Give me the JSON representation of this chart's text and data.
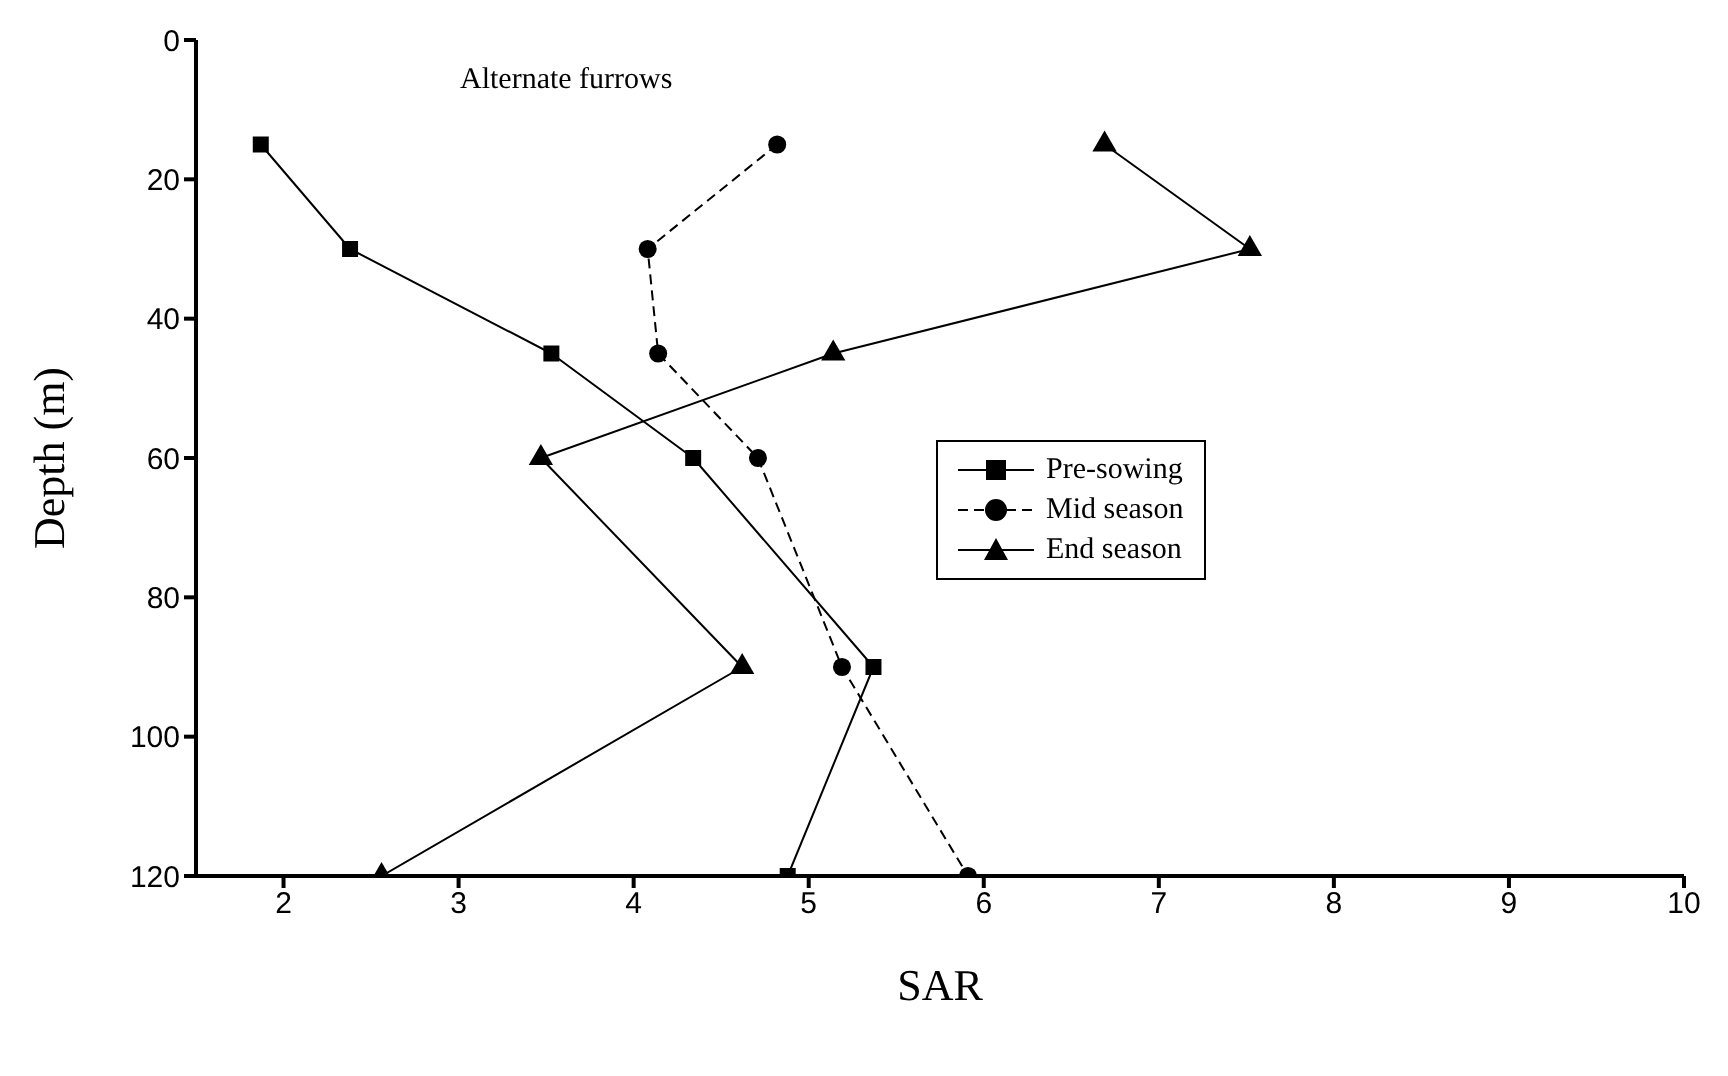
{
  "chart_data": {
    "type": "line",
    "title": "Alternate furrows",
    "xlabel": "SAR",
    "ylabel": "Depth (m)",
    "xlim": [
      1.5,
      10
    ],
    "xticks": [
      2,
      3,
      4,
      5,
      6,
      7,
      8,
      9,
      10
    ],
    "ylim": [
      120,
      0
    ],
    "yticks": [
      0,
      20,
      40,
      60,
      80,
      100,
      120
    ],
    "grid": false,
    "legend": "right",
    "series": [
      {
        "name": "Pre-sowing",
        "color": "#000000",
        "marker": "square",
        "line_style": "solid",
        "x": [
          1.87,
          2.38,
          3.53,
          4.34,
          5.37,
          4.88
        ],
        "values": [
          15,
          30,
          45,
          60,
          90,
          120
        ]
      },
      {
        "name": "Mid season",
        "color": "#000000",
        "marker": "circle",
        "line_style": "dashed",
        "x": [
          4.82,
          4.08,
          4.14,
          4.71,
          5.19,
          5.91
        ],
        "values": [
          15,
          30,
          45,
          60,
          90,
          120
        ]
      },
      {
        "name": "End season",
        "color": "#000000",
        "marker": "triangle",
        "line_style": "solid",
        "x": [
          6.69,
          7.52,
          5.14,
          3.47,
          4.62,
          2.56
        ],
        "values": [
          15,
          30,
          45,
          60,
          90,
          120
        ]
      }
    ]
  }
}
